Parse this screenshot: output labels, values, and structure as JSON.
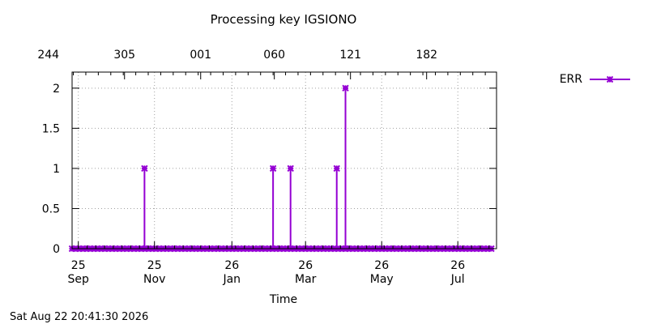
{
  "chart_data": {
    "type": "line",
    "title": "Processing key IGSIONO",
    "xlabel": "Time",
    "ylabel": "",
    "ylim": [
      0,
      2.2
    ],
    "xlim": [
      "2025-09-20",
      "2026-08-26"
    ],
    "y_ticks": [
      "0",
      "0.5",
      "1",
      "1.5",
      "2"
    ],
    "y_tick_values": [
      0,
      0.5,
      1,
      1.5,
      2
    ],
    "x_ticks": [
      {
        "date": "2025-09-25",
        "day": "25",
        "month": "Sep"
      },
      {
        "date": "2025-11-25",
        "day": "25",
        "month": "Nov"
      },
      {
        "date": "2026-01-26",
        "day": "26",
        "month": "Jan"
      },
      {
        "date": "2026-03-26",
        "day": "26",
        "month": "Mar"
      },
      {
        "date": "2026-05-26",
        "day": "26",
        "month": "May"
      },
      {
        "date": "2026-07-26",
        "day": "26",
        "month": "Jul"
      }
    ],
    "top_ticks": [
      {
        "date": "2025-09-01",
        "label": "244"
      },
      {
        "date": "2025-11-01",
        "label": "305"
      },
      {
        "date": "2026-01-01",
        "label": "001"
      },
      {
        "date": "2026-03-01",
        "label": "060"
      },
      {
        "date": "2026-05-01",
        "label": "121"
      },
      {
        "date": "2026-07-01",
        "label": "182"
      }
    ],
    "grid": true,
    "legend_position": "right",
    "series": [
      {
        "name": "ERR",
        "color": "#9400d3",
        "marker": "x",
        "baseline": {
          "value": 0,
          "from": "2025-09-20",
          "to": "2026-08-22"
        },
        "spikes": [
          {
            "x": "2025-11-17",
            "y": 1
          },
          {
            "x": "2026-02-28",
            "y": 1
          },
          {
            "x": "2026-03-14",
            "y": 1
          },
          {
            "x": "2026-04-20",
            "y": 1
          },
          {
            "x": "2026-04-27",
            "y": 2
          }
        ]
      }
    ]
  },
  "timestamp": "Sat Aug 22 20:41:30 2026"
}
